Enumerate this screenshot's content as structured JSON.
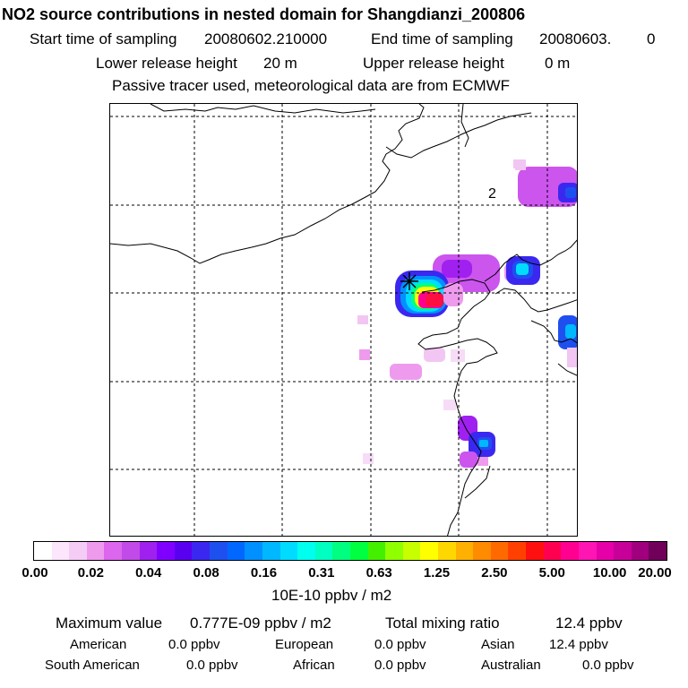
{
  "header": {
    "title": "NO2 source contributions in nested domain for Shangdianzi_200806",
    "start_label": "Start time of sampling",
    "start_value": "20080602.210000",
    "end_label": "End time of sampling",
    "end_value": "20080603.",
    "end_suffix": "0",
    "lower_label": "Lower release height",
    "lower_value": "20 m",
    "upper_label": "Upper release height",
    "upper_value": "0 m",
    "note": "Passive tracer used, meteorological data are from ECMWF"
  },
  "map": {
    "grid_label": "2",
    "marker_name": "receptor-station"
  },
  "colorbar": {
    "ticks": [
      "0.00",
      "0.02",
      "0.04",
      "0.08",
      "0.16",
      "0.31",
      "0.63",
      "1.25",
      "2.50",
      "5.00",
      "10.00",
      "20.00"
    ],
    "units": "10E-10 ppbv / m2",
    "colors": [
      "#ffffff",
      "#fbe6fb",
      "#f5ccf5",
      "#ee9bee",
      "#dd66ee",
      "#c24ae8",
      "#a020f0",
      "#8000ff",
      "#5a00f0",
      "#3a28f0",
      "#1e50f0",
      "#0068ff",
      "#0090ff",
      "#00b8ff",
      "#00dcff",
      "#00ffee",
      "#00ffc0",
      "#00ff80",
      "#00ff40",
      "#44f000",
      "#90ff00",
      "#c8ff00",
      "#ffff00",
      "#ffd700",
      "#ffb000",
      "#ff8c00",
      "#ff6a00",
      "#ff4000",
      "#ff1010",
      "#ff0050",
      "#ff0090",
      "#ff14b4",
      "#e600a8",
      "#c8009a",
      "#a0007e",
      "#70005a"
    ]
  },
  "stats": {
    "max_label": "Maximum value",
    "max_value": "0.777E-09 ppbv / m2",
    "total_label": "Total mixing ratio",
    "total_value": "12.4 ppbv",
    "regions": [
      {
        "name": "American",
        "value": "0.0 ppbv"
      },
      {
        "name": "European",
        "value": "0.0 ppbv"
      },
      {
        "name": "Asian",
        "value": "12.4 ppbv"
      },
      {
        "name": "South American",
        "value": "0.0 ppbv"
      },
      {
        "name": "African",
        "value": "0.0 ppbv"
      },
      {
        "name": "Australian",
        "value": "0.0 ppbv"
      }
    ]
  }
}
